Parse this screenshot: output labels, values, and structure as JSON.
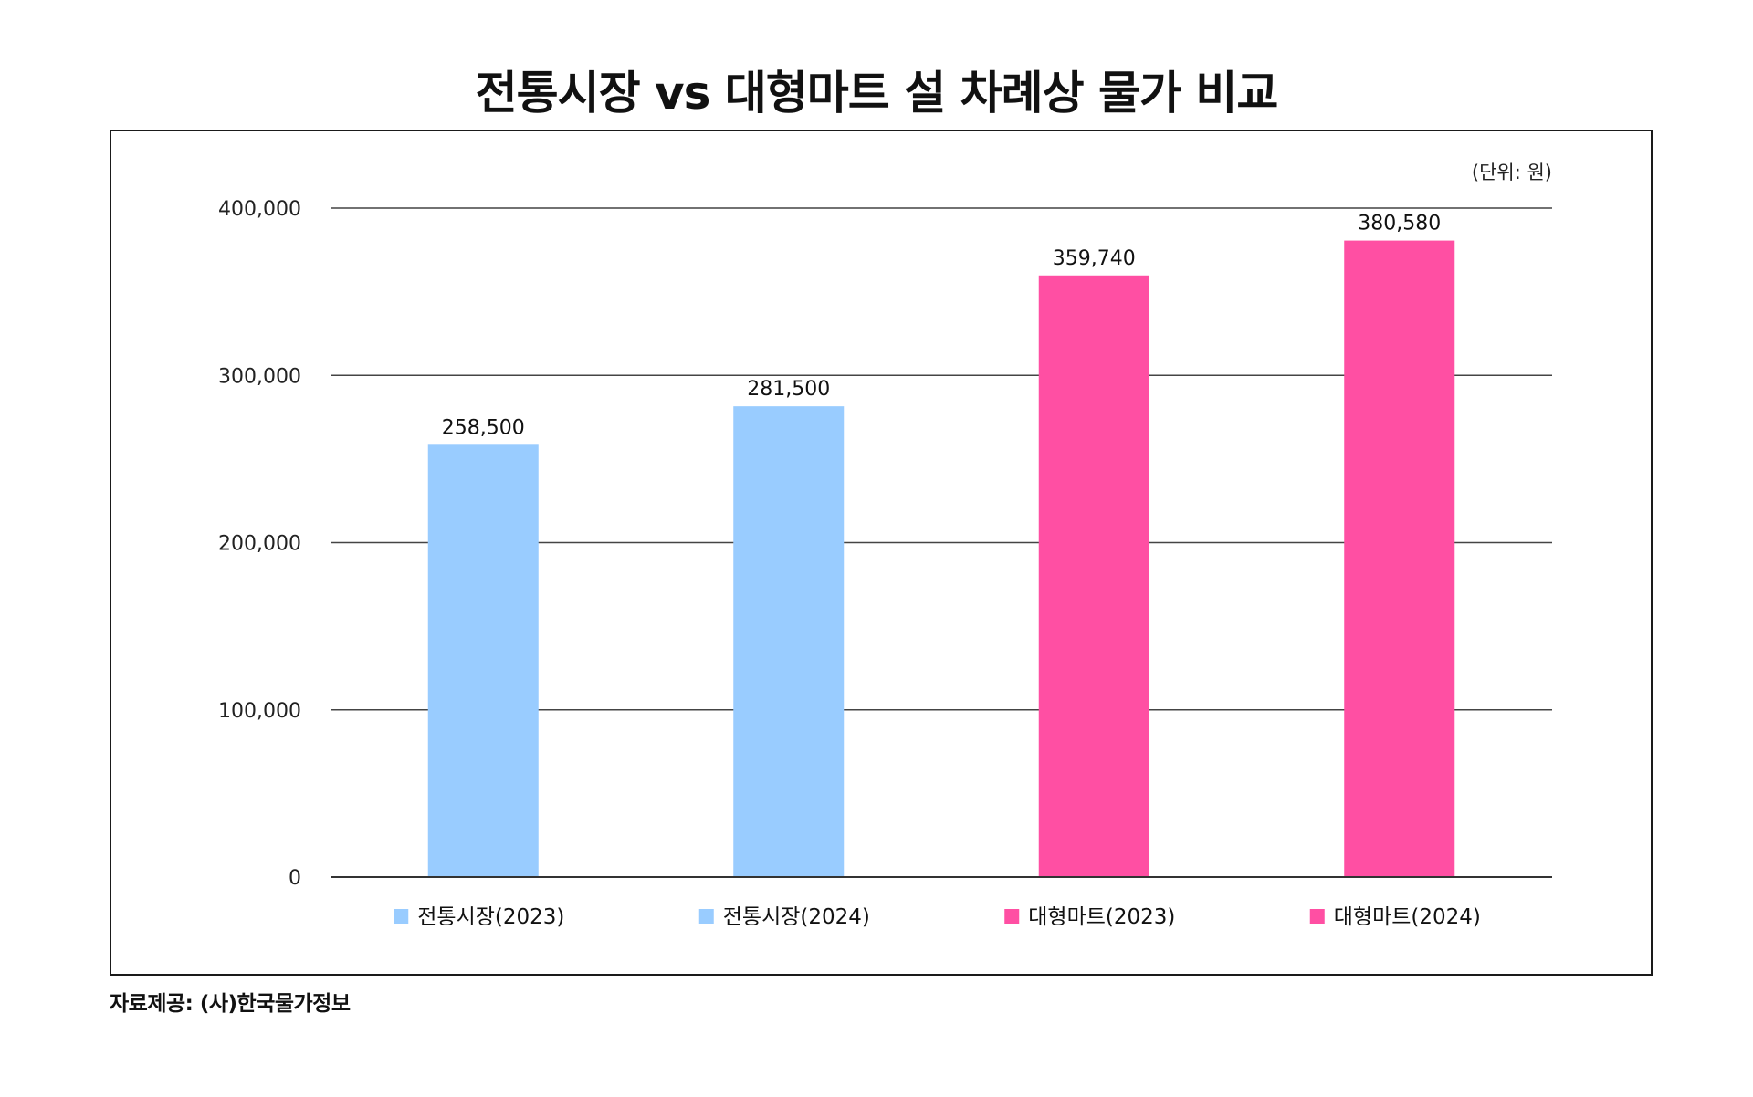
{
  "chart_data": {
    "type": "bar",
    "title": "전통시장 vs 대형마트 설 차례상 물가 비교",
    "unit_label": "(단위: 원)",
    "categories": [
      "전통시장(2023)",
      "전통시장(2024)",
      "대형마트(2023)",
      "대형마트(2024)"
    ],
    "values": [
      258500,
      281500,
      359740,
      380580
    ],
    "data_labels": [
      "258,500",
      "281,500",
      "359,740",
      "380,580"
    ],
    "colors": [
      "#99ccff",
      "#99ccff",
      "#ff4fa3",
      "#ff4fa3"
    ],
    "legend": [
      {
        "label": "전통시장(2023)",
        "color": "#99ccff"
      },
      {
        "label": "전통시장(2024)",
        "color": "#99ccff"
      },
      {
        "label": "대형마트(2023)",
        "color": "#ff4fa3"
      },
      {
        "label": "대형마트(2024)",
        "color": "#ff4fa3"
      }
    ],
    "legend_position": "bottom",
    "ylim": [
      0,
      400000
    ],
    "yticks": [
      0,
      100000,
      200000,
      300000,
      400000
    ],
    "ytick_labels": [
      "0",
      "100,000",
      "200,000",
      "300,000",
      "400,000"
    ],
    "grid": true,
    "xlabel": "",
    "ylabel": ""
  },
  "source": "자료제공: (사)한국물가정보"
}
